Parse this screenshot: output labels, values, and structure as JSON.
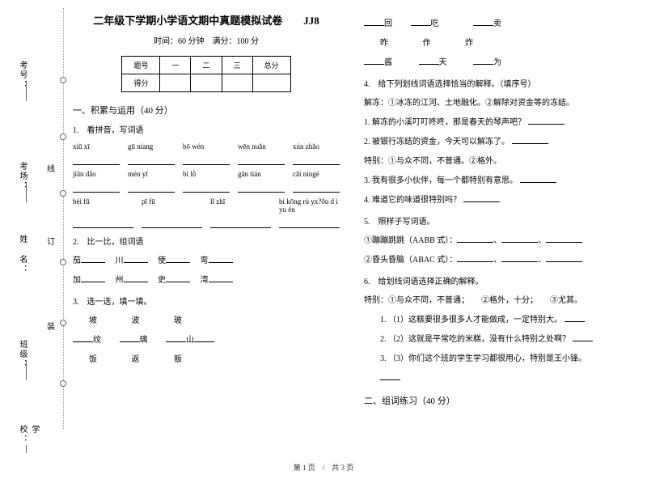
{
  "binding": {
    "labels": [
      "考号：",
      "考场：",
      "姓",
      "名：",
      "班级：",
      "学校："
    ],
    "mid_chars": [
      "线",
      "订",
      "装"
    ]
  },
  "header": {
    "title": "二年级下学期小学语文期中真题模拟试卷",
    "code": "JJ8",
    "subtitle": "时间：60 分钟　满分：100 分"
  },
  "table": {
    "r1c1": "题号",
    "r1c2": "一",
    "r1c3": "二",
    "r1c4": "三",
    "r1c5": "总分",
    "r2c1": "得分"
  },
  "left": {
    "sec1": "一、积累与运用（40 分）",
    "q1": "1.　看拼音，写词语",
    "py": {
      "r1": [
        "xiū xī",
        "gū niang",
        "bō wén",
        "wēn nuǎn",
        "xún zhǎo"
      ],
      "r2": [
        "jiān dǎo",
        "mén yī",
        "bì lǜ",
        "gān tián",
        "cǎi níngé"
      ],
      "r3": [
        "bèi fū",
        "pī fū",
        "lǐ zhī",
        "bì kōng rú yx?ǒu d ì yu én"
      ]
    },
    "q2": "2.　比一比，组词语",
    "q2_lines": {
      "l1a": "茄",
      "l1b": "川",
      "l1c": "使",
      "l1d": "弯",
      "l2a": "加",
      "l2b": "州",
      "l2c": "史",
      "l2d": "湾"
    },
    "q3": "3.　选一选，填一填。",
    "q3_lines": {
      "l1a": "坡",
      "l1b": "波",
      "l1c": "玻",
      "l2a": "纹",
      "l2b": "璃",
      "l2c": "山",
      "l3a": "饭",
      "l3b": "返",
      "l3c": "贩"
    }
  },
  "right": {
    "l1": {
      "a": "回",
      "b": "吃",
      "c": "卖"
    },
    "l2": {
      "a": "昨",
      "b": "作",
      "c": "炸"
    },
    "l3": {
      "a": "酱",
      "b": "天",
      "c": "为"
    },
    "q4": "4.　给下列划线词语选择恰当的解释。（填序号）",
    "q4_note": "解冻：①冰冻的江河、土地融化。②解除对资金等的冻结。",
    "q4_1": "1. 解冻的小溪叮叮咚咚，那是春天的琴声吧？",
    "q4_2": "2. 被银行冻结的资金，今天可以解冻了。",
    "q4_note2": "特别：①与众不同，不普通。②格外。",
    "q4_3": "3. 我有很多小伙伴，每一个都特别有意思。",
    "q4_4": "4. 难道它的味道很特别吗？",
    "q5": "5.　照样子写词语。",
    "q5_1": "①蹦蹦跳跳（AABB 式）：",
    "q5_2": "②昏头昏脑（ABAC 式）：",
    "q6": "6.　给划线词语选择正确的解释。",
    "q6_note": "特别：①与众不同，不普通；　　②格外，十分；　　③尤其。",
    "q6_1": "1. （1）这糕要很多很多人才能做成，一定特别大。",
    "q6_2": "2. （2）这就是平常吃的米糕，没有什么特别之处啊？",
    "q6_3": "3. （3）你们这个班的学生学习都很用心，特别是王小锋。",
    "sec2": "二、组词练习（40 分）"
  },
  "footer": "第 1 页　/　共 3 页"
}
